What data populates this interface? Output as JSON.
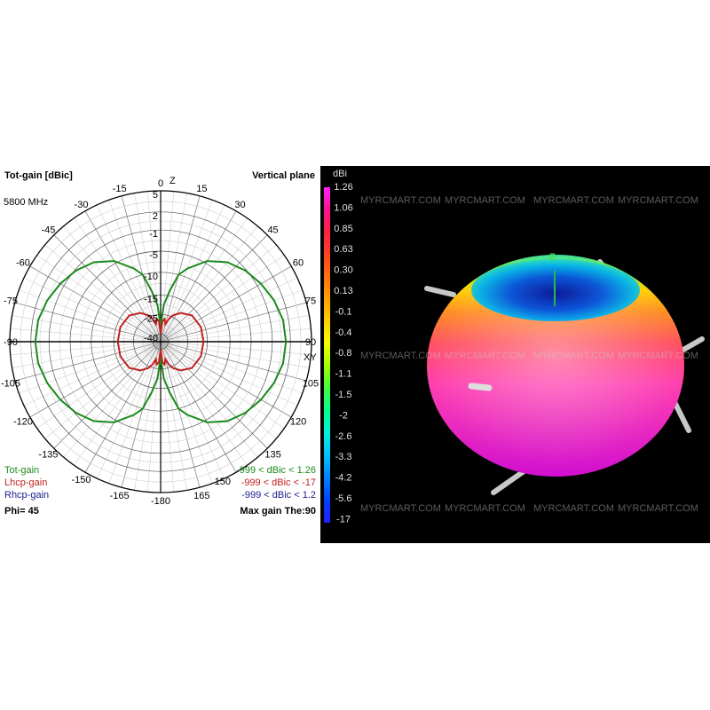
{
  "watermark": "MYRCMART.COM",
  "polar_panel": {
    "title": "Tot-gain [dBic]",
    "plane": "Vertical plane",
    "frequency": "5800 MHz",
    "top_axis_label": "Z",
    "right_axis_label": "XY",
    "phi": "Phi= 45",
    "max_gain": "Max gain The:90",
    "legend": [
      {
        "name": "Tot-gain",
        "range": "-999 < dBic < 1.26",
        "color": "#1a8a1a"
      },
      {
        "name": "Lhcp-gain",
        "range": "-999 < dBic < -17",
        "color": "#c02020"
      },
      {
        "name": "Rhcp-gain",
        "range": "-999 < dBic < 1.2",
        "color": "#202090"
      }
    ]
  },
  "chart_data": [
    {
      "type": "polar",
      "title": "Tot-gain [dBic]",
      "unit": "dBic",
      "radial_ticks": [
        5,
        2,
        -1,
        -5,
        -10,
        -15,
        -25,
        -40
      ],
      "angle_ticks": [
        0,
        15,
        30,
        45,
        60,
        75,
        90,
        105,
        120,
        135,
        150,
        165,
        -180,
        -165,
        -150,
        -135,
        -120,
        -105,
        -90,
        -75,
        -60,
        -45,
        -30,
        -15
      ],
      "grid": true,
      "series": [
        {
          "name": "Tot-gain",
          "color": "#1a8a1a",
          "theta": [
            0,
            2,
            5,
            10,
            15,
            20,
            30,
            40,
            50,
            60,
            70,
            80,
            90,
            100,
            110,
            120,
            130,
            140,
            150,
            160,
            165,
            170,
            175,
            178,
            180
          ],
          "gain": [
            -40,
            -30,
            -20,
            -14,
            -10,
            -8,
            -4.5,
            -2.5,
            -1.2,
            -0.3,
            0.5,
            1.1,
            1.26,
            1.1,
            0.5,
            -0.3,
            -1.2,
            -2.5,
            -4.5,
            -8,
            -10,
            -14,
            -20,
            -30,
            -40
          ]
        },
        {
          "name": "Lhcp-gain",
          "color": "#c02020",
          "theta": [
            0,
            5,
            10,
            15,
            20,
            25,
            35,
            50,
            70,
            90,
            110,
            130,
            145,
            155,
            160,
            165,
            170,
            175,
            180
          ],
          "gain": [
            -40,
            -30,
            -28,
            -32,
            -27,
            -24,
            -21,
            -18,
            -17,
            -17,
            -17,
            -18,
            -21,
            -24,
            -27,
            -32,
            -28,
            -30,
            -40
          ]
        }
      ]
    },
    {
      "type": "heatmap",
      "colorbar_unit": "dBi",
      "colorbar_ticks": [
        "1.26",
        "1.06",
        "0.85",
        "0.63",
        "0.30",
        "0.13",
        "-0.1",
        "-0.4",
        "-0.8",
        "-1.1",
        "-1.5",
        "-2",
        "-2.6",
        "-3.3",
        "-4.2",
        "-5.6",
        "-17"
      ],
      "colorbar_colors": [
        "#ff20ff",
        "#ff1090",
        "#ff2040",
        "#ff4020",
        "#ff7010",
        "#ffa000",
        "#ffd000",
        "#f0ff00",
        "#a0ff00",
        "#40ff40",
        "#00ff90",
        "#00f0e0",
        "#00c0ff",
        "#0080ff",
        "#0040ff",
        "#2020ff"
      ],
      "axis_label": "Z"
    }
  ]
}
